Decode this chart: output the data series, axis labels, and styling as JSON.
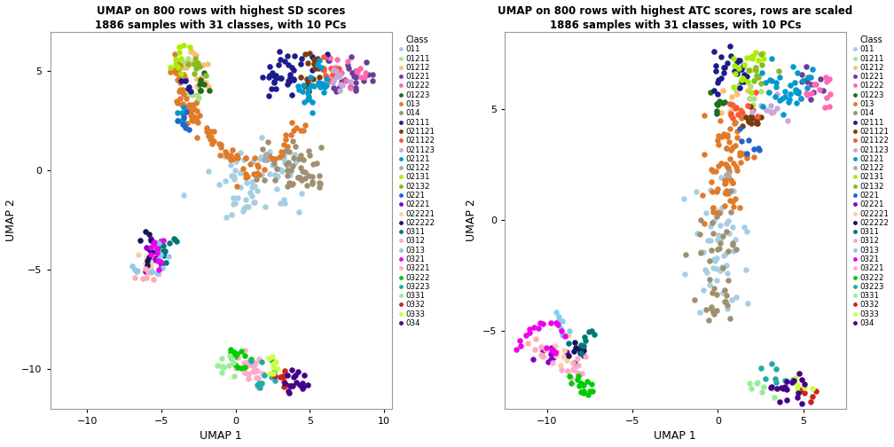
{
  "title1": "UMAP on 800 rows with highest SD scores\n1886 samples with 31 classes, with 10 PCs",
  "title2": "UMAP on 800 rows with highest ATC scores, rows are scaled\n1886 samples with 31 classes, with 10 PCs",
  "xlabel": "UMAP 1",
  "ylabel": "UMAP 2",
  "legend_title": "Class",
  "classes": [
    "011",
    "01211",
    "01212",
    "01221",
    "01222",
    "01223",
    "013",
    "014",
    "02111",
    "021121",
    "021122",
    "021123",
    "02121",
    "02122",
    "02131",
    "02132",
    "0221",
    "02221",
    "022221",
    "022222",
    "0311",
    "0312",
    "0313",
    "0321",
    "03221",
    "03222",
    "03223",
    "0331",
    "0332",
    "0333",
    "034"
  ],
  "color_map": {
    "011": "#A6CEE3",
    "01211": "#B2DF8A",
    "01212": "#FDBF6F",
    "01221": "#6A3D9A",
    "01222": "#FF69B4",
    "01223": "#1F6E1F",
    "013": "#E07B2A",
    "014": "#A09070",
    "02111": "#1C1C8C",
    "021121": "#7B3B10",
    "021122": "#FF5533",
    "021123": "#C8A8D8",
    "02121": "#009ACD",
    "02122": "#AAAAAA",
    "02131": "#AAEE00",
    "02132": "#88BB22",
    "0221": "#2266CC",
    "02221": "#8800CC",
    "022221": "#FFCCAA",
    "022222": "#151560",
    "0311": "#007777",
    "0312": "#FFAABB",
    "0313": "#88CCEE",
    "0321": "#EE00EE",
    "03221": "#FFAACC",
    "03222": "#00CC00",
    "03223": "#22AAAA",
    "0331": "#99EE99",
    "0332": "#CC2222",
    "0333": "#CCFF44",
    "034": "#440088"
  },
  "xlim1": [
    -12.5,
    10.5
  ],
  "ylim1": [
    -12,
    7
  ],
  "xlim2": [
    -12.5,
    7.5
  ],
  "ylim2": [
    -8.5,
    8.5
  ],
  "xticks1": [
    -10,
    -5,
    0,
    5,
    10
  ],
  "yticks1": [
    -10,
    -5,
    0,
    5
  ],
  "xticks2": [
    -10,
    -5,
    0,
    5
  ],
  "yticks2": [
    -5,
    0,
    5
  ],
  "point_size": 22,
  "figsize": [
    10.08,
    5.04
  ],
  "dpi": 100
}
